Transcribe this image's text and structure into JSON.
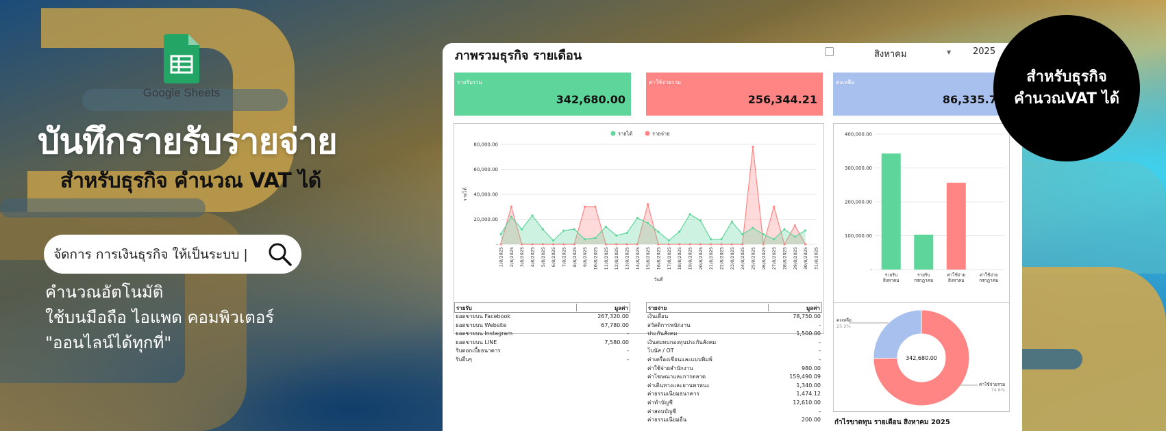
{
  "promo": {
    "logo_text": "Google Sheets",
    "headline": "บันทึกรายรับรายจ่าย",
    "subhead": "สำหรับธุรกิจ คำนวณ VAT ได้",
    "search_text": "จัดการ การเงินธุรกิจ ให้เป็นระบบ |",
    "features": [
      "คำนวณอัตโนมัติ",
      "ใช้บนมือถือ ไอแพด คอมพิวเตอร์",
      "\"ออนไลน์ได้ทุกที่\""
    ]
  },
  "badge": {
    "line1": "สำหรับธุรกิจ",
    "line2": "คำนวณVAT ได้"
  },
  "dashboard": {
    "title": "ภาพรวมธุรกิจ รายเดือน",
    "month": "สิงหาคม",
    "year": "2025",
    "kpis": [
      {
        "label": "รายรับรวม",
        "value": "342,680.00",
        "color": "#5ed59b"
      },
      {
        "label": "ค่าใช้จ่ายรวม",
        "value": "256,344.21",
        "color": "#ff8484"
      },
      {
        "label": "คงเหลือ",
        "value": "86,335.79",
        "color": "#a8c0ee"
      }
    ],
    "income_table": {
      "col1": "รายรับ",
      "col2": "มูลค่า",
      "rows": [
        [
          "ยอดขายบน Facebook",
          "267,320.00"
        ],
        [
          "ยอดขายบน Website",
          "67,780.00"
        ],
        [
          "ยอดขายบน Instagram",
          "-"
        ],
        [
          "ยอดขายบน LINE",
          "7,580.00"
        ],
        [
          "รับดอกเบี้ยธนาคาร",
          "-"
        ],
        [
          "รับอื่นๆ",
          "-"
        ]
      ]
    },
    "expense_table": {
      "col1": "รายจ่าย",
      "col2": "มูลค่า",
      "rows": [
        [
          "เงินเดือน",
          "78,750.00"
        ],
        [
          "สวัสดิการพนักงาน",
          "-"
        ],
        [
          "ประกันสังคม",
          "1,500.00"
        ],
        [
          "เงินสมทบกองทุนประกันสังคม",
          "-"
        ],
        [
          "โบนัส / OT",
          "-"
        ],
        [
          "ค่าเครื่องเขียนและแบบพิมพ์",
          "-"
        ],
        [
          "ค่าใช้จ่ายสำนักงาน",
          "980.00"
        ],
        [
          "ค่าโฆษณาและการตลาด",
          "159,490.09"
        ],
        [
          "ค่าเดินทางและยานพาหนะ",
          "1,340.00"
        ],
        [
          "ค่าธรรมเนียมธนาคาร",
          "1,474.12"
        ],
        [
          "ค่าทำบัญชี",
          "12,610.00"
        ],
        [
          "ค่าสอบบัญชี",
          "-"
        ],
        [
          "ค่าธรรมเนียมอื่น",
          "200.00"
        ]
      ]
    },
    "profit_title": "กำไรขาดทุน รายเดือน สิงหาคม 2025"
  },
  "chart_data": [
    {
      "type": "area",
      "xlabel": "วันที่",
      "ylabel": "รายได้",
      "ylim": [
        0,
        80000
      ],
      "yticks": [
        "-",
        "20,000.00",
        "40,000.00",
        "60,000.00",
        "80,000.00"
      ],
      "legend_position": "top",
      "categories": [
        "1/8/2025",
        "2/8/2025",
        "3/8/2025",
        "4/8/2025",
        "5/8/2025",
        "6/8/2025",
        "7/8/2025",
        "8/8/2025",
        "9/8/2025",
        "10/8/2025",
        "11/8/2025",
        "12/8/2025",
        "13/8/2025",
        "14/8/2025",
        "15/8/2025",
        "16/8/2025",
        "17/8/2025",
        "18/8/2025",
        "19/8/2025",
        "20/8/2025",
        "21/8/2025",
        "22/8/2025",
        "23/8/2025",
        "24/8/2025",
        "25/8/2025",
        "26/8/2025",
        "27/8/2025",
        "28/8/2025",
        "29/8/2025",
        "30/8/2025",
        "31/8/2025"
      ],
      "series": [
        {
          "name": "รายได้",
          "color": "#5ed59b",
          "values": [
            8000,
            22000,
            12000,
            23000,
            12000,
            3000,
            11000,
            12000,
            4000,
            5000,
            14000,
            7000,
            9000,
            21000,
            17000,
            10000,
            3000,
            10000,
            24000,
            19000,
            4000,
            4000,
            18000,
            8000,
            13000,
            8000,
            4000,
            12000,
            6000,
            11000,
            null
          ]
        },
        {
          "name": "รายจ่าย",
          "color": "#ff8484",
          "values": [
            0,
            30000,
            0,
            0,
            0,
            0,
            0,
            0,
            30000,
            30000,
            0,
            0,
            0,
            0,
            32000,
            0,
            0,
            0,
            0,
            0,
            0,
            0,
            0,
            0,
            78000,
            0,
            30000,
            0,
            15000,
            0,
            null
          ]
        }
      ]
    },
    {
      "type": "bar",
      "ylim": [
        0,
        400000
      ],
      "yticks": [
        "-",
        "100,000.00",
        "200,000.00",
        "300,000.00",
        "400,000.00"
      ],
      "categories": [
        [
          "รายรับ",
          "สิงหาคม"
        ],
        [
          "รายรับ",
          "กรกฎาคม"
        ],
        [
          "ค่าใช้จ่าย",
          "สิงหาคม"
        ],
        [
          "ค่าใช้จ่าย",
          "กรกฎาคม"
        ]
      ],
      "values": [
        342680,
        103000,
        256344.21,
        0
      ],
      "colors": [
        "#5ed59b",
        "#5ed59b",
        "#ff8484",
        "#ff8484"
      ]
    },
    {
      "type": "pie",
      "center_label": "342,680.00",
      "slices": [
        {
          "name": "ค่าใช้จ่ายรวม",
          "pct": "74.8%",
          "value": 74.8,
          "color": "#ff8484"
        },
        {
          "name": "คงเหลือ",
          "pct": "25.2%",
          "value": 25.2,
          "color": "#a8c0ee"
        }
      ]
    }
  ]
}
